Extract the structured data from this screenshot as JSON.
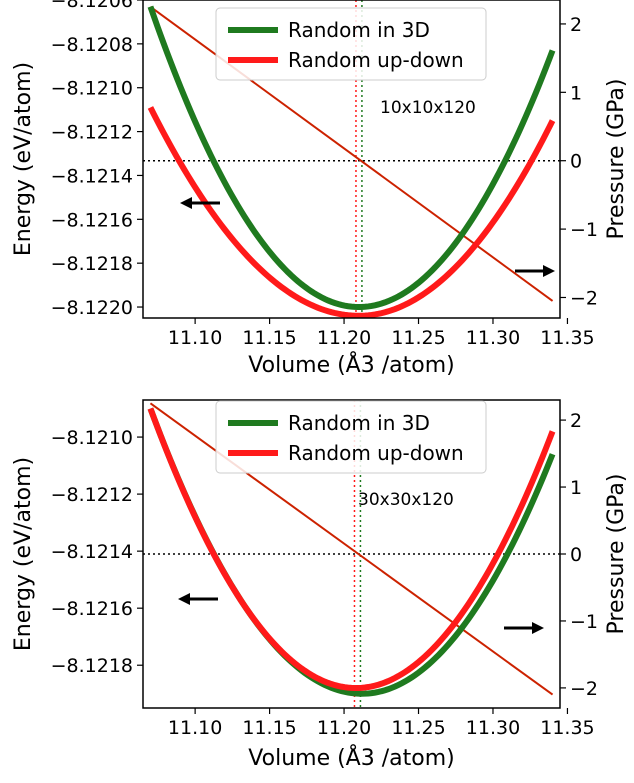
{
  "chart_data": [
    {
      "type": "line",
      "annotation": "10x10x120",
      "xlabel": "Volume (Å3 /atom)",
      "ylabel_left": "Energy (eV/atom)",
      "ylabel_right": "Pressure (GPa)",
      "xlim": [
        11.065,
        11.345
      ],
      "ylim_left": [
        -8.12205,
        -8.1206
      ],
      "ylim_right": [
        -2.3,
        2.35
      ],
      "x_ticks": [
        "11.10",
        "11.15",
        "11.20",
        "11.25",
        "11.30",
        "11.35"
      ],
      "x_tick_values": [
        11.1,
        11.15,
        11.2,
        11.25,
        11.3,
        11.35
      ],
      "y_left_ticks": [
        "−8.1206",
        "−8.1208",
        "−8.1210",
        "−8.1212",
        "−8.1214",
        "−8.1216",
        "−8.1218",
        "−8.1220"
      ],
      "y_left_tick_values": [
        -8.1206,
        -8.1208,
        -8.121,
        -8.1212,
        -8.1214,
        -8.1216,
        -8.1218,
        -8.122
      ],
      "y_right_ticks": [
        "2",
        "1",
        "0",
        "−1",
        "−2"
      ],
      "y_right_tick_values": [
        2,
        1,
        0,
        -1,
        -2
      ],
      "legend_position": "top-center",
      "series": [
        {
          "name": "Random in 3D",
          "color": "#1f7a1f",
          "axis": "left",
          "x_range": [
            11.07,
            11.34
          ],
          "vertex": [
            11.21,
            -8.122
          ],
          "values_at_ends": [
            -8.12063,
            -8.12083
          ]
        },
        {
          "name": "Random up-down",
          "color": "#ff1a1a",
          "axis": "left",
          "x_range": [
            11.07,
            11.34
          ],
          "vertex": [
            11.21,
            -8.12204
          ],
          "values_at_ends": [
            -8.12109,
            -8.12115
          ]
        }
      ],
      "pressure_line": {
        "color": "#cc2200",
        "axis": "right",
        "x": [
          11.07,
          11.34
        ],
        "y": [
          2.25,
          -2.05
        ]
      },
      "equilibrium_volume_3d": 11.212,
      "equilibrium_volume_updown": 11.208,
      "zero_pressure_energy_level": -8.12137,
      "arrows": [
        "left-pointing",
        "right-pointing"
      ]
    },
    {
      "type": "line",
      "annotation": "30x30x120",
      "xlabel": "Volume (Å3 /atom)",
      "ylabel_left": "Energy (eV/atom)",
      "ylabel_right": "Pressure (GPa)",
      "xlim": [
        11.065,
        11.345
      ],
      "ylim_left": [
        -8.12195,
        -8.12087
      ],
      "ylim_right": [
        -2.3,
        2.3
      ],
      "x_ticks": [
        "11.10",
        "11.15",
        "11.20",
        "11.25",
        "11.30",
        "11.35"
      ],
      "x_tick_values": [
        11.1,
        11.15,
        11.2,
        11.25,
        11.3,
        11.35
      ],
      "y_left_ticks": [
        "−8.1210",
        "−8.1212",
        "−8.1214",
        "−8.1216",
        "−8.1218"
      ],
      "y_left_tick_values": [
        -8.121,
        -8.1212,
        -8.1214,
        -8.1216,
        -8.1218
      ],
      "y_right_ticks": [
        "2",
        "1",
        "0",
        "−1",
        "−2"
      ],
      "y_right_tick_values": [
        2,
        1,
        0,
        -1,
        -2
      ],
      "legend_position": "top-center",
      "series": [
        {
          "name": "Random in 3D",
          "color": "#1f7a1f",
          "axis": "left",
          "x_range": [
            11.07,
            11.34
          ],
          "vertex": [
            11.212,
            -8.1219
          ],
          "values_at_ends": [
            -8.1209,
            -8.12106
          ]
        },
        {
          "name": "Random up-down",
          "color": "#ff1a1a",
          "axis": "left",
          "x_range": [
            11.07,
            11.34
          ],
          "vertex": [
            11.208,
            -8.12188
          ],
          "values_at_ends": [
            -8.1209,
            -8.12098
          ]
        }
      ],
      "pressure_line": {
        "color": "#cc2200",
        "axis": "right",
        "x": [
          11.07,
          11.34
        ],
        "y": [
          2.25,
          -2.1
        ]
      },
      "equilibrium_volume_3d": 11.211,
      "equilibrium_volume_updown": 11.207,
      "zero_pressure_energy_level": -8.12141,
      "arrows": [
        "left-pointing",
        "right-pointing"
      ]
    }
  ]
}
